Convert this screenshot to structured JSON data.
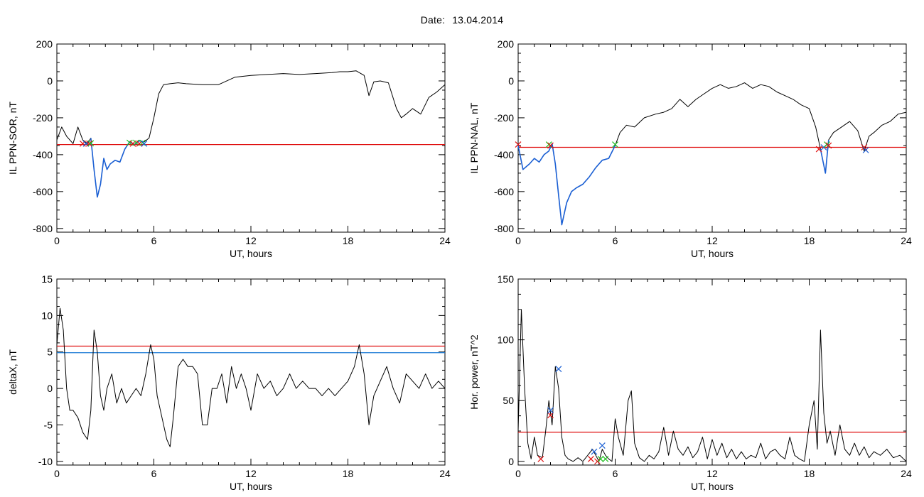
{
  "header": {
    "date_label": "Date:",
    "date_value": "13.04.2014"
  },
  "colors": {
    "axis": "#000000",
    "trace": "#000000",
    "highlight": "#1a5fd4",
    "threshold_red": "#e01010",
    "threshold_blue": "#1a7ad4",
    "marker_red": "#e01010",
    "marker_green": "#1fbf1f",
    "marker_blue": "#1a5fd4"
  },
  "chart_data": [
    {
      "id": "ppn_sor",
      "type": "line",
      "xlabel": "UT, hours",
      "ylabel": "IL PPN-SOR, nT",
      "xlim": [
        0,
        24
      ],
      "ylim": [
        -820,
        200
      ],
      "xticks": [
        0,
        6,
        12,
        18,
        24
      ],
      "yticks": [
        -800,
        -600,
        -400,
        -200,
        0,
        200
      ],
      "threshold": {
        "value": -345,
        "color": "red"
      },
      "series": [
        {
          "x": [
            0,
            0.3,
            0.6,
            1.0,
            1.3,
            1.6,
            1.9,
            2.1,
            2.3,
            2.5,
            2.7,
            2.9,
            3.1,
            3.3,
            3.6,
            3.9,
            4.2,
            4.5,
            4.8,
            5.1,
            5.4,
            5.7,
            6.0,
            6.3,
            6.6,
            7.0,
            7.5,
            8.0,
            9.0,
            10.0,
            11.0,
            12.0,
            13.0,
            14.0,
            15.0,
            16.0,
            17.0,
            17.5,
            18.0,
            18.5,
            19.0,
            19.3,
            19.6,
            20.0,
            20.5,
            21.0,
            21.3,
            21.6,
            22.0,
            22.5,
            23.0,
            23.5,
            24.0
          ],
          "y": [
            -320,
            -250,
            -300,
            -340,
            -250,
            -320,
            -340,
            -310,
            -480,
            -630,
            -560,
            -420,
            -480,
            -450,
            -430,
            -440,
            -370,
            -330,
            -345,
            -325,
            -330,
            -310,
            -200,
            -70,
            -20,
            -15,
            -10,
            -15,
            -20,
            -20,
            20,
            30,
            35,
            40,
            35,
            40,
            45,
            50,
            50,
            55,
            30,
            -80,
            -5,
            0,
            -10,
            -150,
            -200,
            -180,
            -150,
            -180,
            -90,
            -60,
            -20
          ]
        }
      ],
      "highlight_x_range": [
        2.0,
        5.5
      ],
      "markers": [
        {
          "x": 1.6,
          "y": -340,
          "color": "red"
        },
        {
          "x": 1.8,
          "y": -340,
          "color": "blue"
        },
        {
          "x": 2.0,
          "y": -340,
          "color": "red"
        },
        {
          "x": 2.1,
          "y": -338,
          "color": "green"
        },
        {
          "x": 4.5,
          "y": -335,
          "color": "green"
        },
        {
          "x": 4.7,
          "y": -340,
          "color": "red"
        },
        {
          "x": 4.9,
          "y": -335,
          "color": "green"
        },
        {
          "x": 5.1,
          "y": -340,
          "color": "red"
        },
        {
          "x": 5.3,
          "y": -335,
          "color": "green"
        },
        {
          "x": 5.4,
          "y": -340,
          "color": "blue"
        }
      ]
    },
    {
      "id": "ppn_nal",
      "type": "line",
      "xlabel": "UT, hours",
      "ylabel": "IL PPN-NAL, nT",
      "xlim": [
        0,
        24
      ],
      "ylim": [
        -820,
        200
      ],
      "xticks": [
        0,
        6,
        12,
        18,
        24
      ],
      "yticks": [
        -800,
        -600,
        -400,
        -200,
        0,
        200
      ],
      "threshold": {
        "value": -360,
        "color": "red"
      },
      "series": [
        {
          "x": [
            0,
            0.3,
            0.7,
            1.0,
            1.3,
            1.6,
            1.9,
            2.1,
            2.3,
            2.5,
            2.7,
            3.0,
            3.3,
            3.6,
            4.0,
            4.4,
            4.8,
            5.2,
            5.6,
            6.0,
            6.3,
            6.7,
            7.2,
            7.8,
            8.5,
            9.0,
            9.5,
            10.0,
            10.5,
            11.0,
            11.5,
            12.0,
            12.5,
            13.0,
            13.5,
            14.0,
            14.5,
            15.0,
            15.5,
            16.0,
            16.5,
            17.0,
            17.5,
            18.0,
            18.4,
            18.7,
            19.0,
            19.2,
            19.5,
            20.0,
            20.5,
            21.0,
            21.4,
            21.7,
            22.0,
            22.5,
            23.0,
            23.5,
            24.0
          ],
          "y": [
            -350,
            -480,
            -450,
            -420,
            -440,
            -400,
            -380,
            -340,
            -450,
            -620,
            -780,
            -660,
            -600,
            -580,
            -560,
            -520,
            -470,
            -430,
            -420,
            -350,
            -280,
            -240,
            -250,
            -200,
            -180,
            -170,
            -150,
            -100,
            -140,
            -100,
            -70,
            -40,
            -20,
            -40,
            -30,
            -10,
            -40,
            -20,
            -30,
            -60,
            -80,
            -100,
            -130,
            -150,
            -250,
            -370,
            -500,
            -320,
            -280,
            -250,
            -220,
            -270,
            -380,
            -300,
            -280,
            -240,
            -220,
            -180,
            -170
          ]
        }
      ],
      "highlight_x_range": [
        0.0,
        6.1
      ],
      "highlight_x_range_2": [
        18.5,
        19.3
      ],
      "markers": [
        {
          "x": 0.0,
          "y": -345,
          "color": "red"
        },
        {
          "x": 1.9,
          "y": -345,
          "color": "green"
        },
        {
          "x": 2.0,
          "y": -350,
          "color": "red"
        },
        {
          "x": 6.0,
          "y": -345,
          "color": "green"
        },
        {
          "x": 18.6,
          "y": -370,
          "color": "red"
        },
        {
          "x": 18.9,
          "y": -360,
          "color": "blue"
        },
        {
          "x": 19.1,
          "y": -345,
          "color": "green"
        },
        {
          "x": 19.2,
          "y": -350,
          "color": "red"
        },
        {
          "x": 21.4,
          "y": -360,
          "color": "red"
        },
        {
          "x": 21.5,
          "y": -375,
          "color": "blue"
        }
      ]
    },
    {
      "id": "deltax",
      "type": "line",
      "xlabel": "UT, hours",
      "ylabel": "deltaX, nT",
      "xlim": [
        0,
        24
      ],
      "ylim": [
        -10.5,
        15
      ],
      "xticks": [
        0,
        6,
        12,
        18,
        24
      ],
      "yticks": [
        -10,
        -5,
        0,
        5,
        10,
        15
      ],
      "thresholds": [
        {
          "value": 5.8,
          "color": "red"
        },
        {
          "value": 4.9,
          "color": "blue"
        }
      ],
      "series": [
        {
          "x": [
            0,
            0.2,
            0.4,
            0.6,
            0.8,
            1.0,
            1.3,
            1.6,
            1.9,
            2.1,
            2.3,
            2.5,
            2.7,
            2.9,
            3.1,
            3.4,
            3.7,
            4.0,
            4.3,
            4.6,
            4.9,
            5.2,
            5.5,
            5.8,
            6.0,
            6.2,
            6.5,
            6.8,
            7.0,
            7.2,
            7.5,
            7.8,
            8.1,
            8.4,
            8.7,
            9.0,
            9.3,
            9.6,
            9.9,
            10.2,
            10.5,
            10.8,
            11.1,
            11.4,
            11.7,
            12.0,
            12.4,
            12.8,
            13.2,
            13.6,
            14.0,
            14.4,
            14.8,
            15.2,
            15.6,
            16.0,
            16.4,
            16.8,
            17.2,
            17.6,
            18.0,
            18.4,
            18.7,
            19.0,
            19.3,
            19.6,
            20.0,
            20.4,
            20.8,
            21.2,
            21.6,
            22.0,
            22.4,
            22.8,
            23.2,
            23.6,
            24.0
          ],
          "y": [
            6,
            11,
            8,
            0,
            -3,
            -3,
            -4,
            -6,
            -7,
            -3,
            8,
            5,
            -1,
            -3,
            0,
            2,
            -2,
            0,
            -2,
            -1,
            0,
            -1,
            2,
            6,
            4,
            -1,
            -4,
            -7,
            -8,
            -4,
            3,
            4,
            3,
            3,
            2,
            -5,
            -5,
            0,
            0,
            2,
            -2,
            3,
            0,
            2,
            0,
            -3,
            2,
            0,
            1,
            -1,
            0,
            2,
            0,
            1,
            0,
            0,
            -1,
            0,
            -1,
            0,
            1,
            3,
            6,
            2,
            -5,
            -1,
            1,
            3,
            0,
            -2,
            2,
            1,
            0,
            2,
            0,
            1,
            0
          ]
        }
      ]
    },
    {
      "id": "hor_power",
      "type": "line",
      "xlabel": "UT, hours",
      "ylabel": "Hor. power, nT^2",
      "xlim": [
        0,
        24
      ],
      "ylim": [
        -3,
        150
      ],
      "xticks": [
        0,
        6,
        12,
        18,
        24
      ],
      "yticks": [
        0,
        50,
        100,
        150
      ],
      "threshold": {
        "value": 24,
        "color": "red"
      },
      "series": [
        {
          "x": [
            0,
            0.2,
            0.4,
            0.6,
            0.8,
            1.0,
            1.2,
            1.5,
            1.7,
            1.9,
            2.1,
            2.3,
            2.5,
            2.7,
            2.9,
            3.1,
            3.4,
            3.7,
            4.0,
            4.3,
            4.6,
            4.8,
            5.0,
            5.2,
            5.4,
            5.6,
            5.8,
            6.0,
            6.2,
            6.5,
            6.8,
            7.0,
            7.2,
            7.5,
            7.8,
            8.1,
            8.4,
            8.7,
            9.0,
            9.3,
            9.6,
            9.9,
            10.2,
            10.5,
            10.8,
            11.1,
            11.4,
            11.7,
            12.0,
            12.3,
            12.6,
            12.9,
            13.2,
            13.5,
            13.8,
            14.1,
            14.4,
            14.7,
            15.0,
            15.3,
            15.6,
            15.9,
            16.2,
            16.5,
            16.8,
            17.1,
            17.4,
            17.7,
            18.0,
            18.3,
            18.5,
            18.7,
            18.9,
            19.1,
            19.3,
            19.6,
            19.9,
            20.2,
            20.5,
            20.8,
            21.1,
            21.4,
            21.7,
            22.0,
            22.4,
            22.8,
            23.2,
            23.6,
            24.0
          ],
          "y": [
            25,
            125,
            60,
            15,
            2,
            20,
            5,
            3,
            25,
            50,
            30,
            78,
            60,
            20,
            5,
            2,
            0,
            3,
            0,
            5,
            10,
            5,
            0,
            10,
            5,
            2,
            0,
            35,
            20,
            5,
            50,
            58,
            15,
            3,
            0,
            5,
            2,
            8,
            28,
            5,
            25,
            10,
            5,
            12,
            3,
            8,
            20,
            2,
            18,
            5,
            15,
            3,
            10,
            2,
            8,
            2,
            5,
            3,
            15,
            2,
            8,
            10,
            5,
            2,
            20,
            5,
            2,
            0,
            30,
            50,
            10,
            108,
            40,
            15,
            25,
            5,
            30,
            10,
            5,
            15,
            5,
            12,
            3,
            8,
            5,
            10,
            3,
            5,
            0
          ]
        }
      ],
      "markers": [
        {
          "x": 1.4,
          "y": 2,
          "color": "red"
        },
        {
          "x": 2.0,
          "y": 38,
          "color": "red"
        },
        {
          "x": 2.0,
          "y": 42,
          "color": "blue"
        },
        {
          "x": 2.5,
          "y": 76,
          "color": "blue"
        },
        {
          "x": 4.5,
          "y": 2,
          "color": "red"
        },
        {
          "x": 4.7,
          "y": 8,
          "color": "blue"
        },
        {
          "x": 4.9,
          "y": 0,
          "color": "red"
        },
        {
          "x": 5.1,
          "y": 2,
          "color": "green"
        },
        {
          "x": 5.2,
          "y": 13,
          "color": "blue"
        },
        {
          "x": 5.4,
          "y": 2,
          "color": "green"
        }
      ]
    }
  ]
}
